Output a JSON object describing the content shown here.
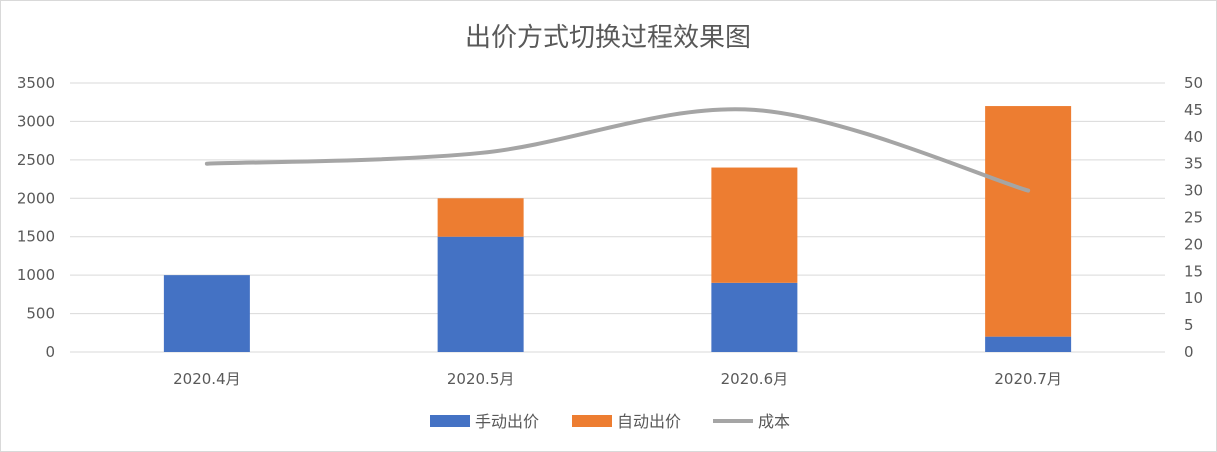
{
  "chart_data": {
    "type": "bar",
    "stacked": true,
    "title": "出价方式切换过程效果图",
    "categories": [
      "2020.4月",
      "2020.5月",
      "2020.6月",
      "2020.7月"
    ],
    "series": [
      {
        "name": "手动出价",
        "type": "bar",
        "axis": "left",
        "color": "#4472C4",
        "values": [
          1000,
          1500,
          900,
          200
        ]
      },
      {
        "name": "自动出价",
        "type": "bar",
        "axis": "left",
        "color": "#ED7D31",
        "values": [
          0,
          500,
          1500,
          3000
        ]
      },
      {
        "name": "成本",
        "type": "line",
        "smooth": true,
        "axis": "right",
        "color": "#A5A5A5",
        "values": [
          35,
          37,
          45,
          30
        ]
      }
    ],
    "y_left": {
      "min": 0,
      "max": 3500,
      "ticks": [
        "0",
        "500",
        "1000",
        "1500",
        "2000",
        "2500",
        "3000",
        "3500"
      ]
    },
    "y_right": {
      "min": 0,
      "max": 50,
      "ticks": [
        "0",
        "5",
        "10",
        "15",
        "20",
        "25",
        "30",
        "35",
        "40",
        "45",
        "50"
      ]
    },
    "grid": true,
    "legend": "bottom"
  }
}
